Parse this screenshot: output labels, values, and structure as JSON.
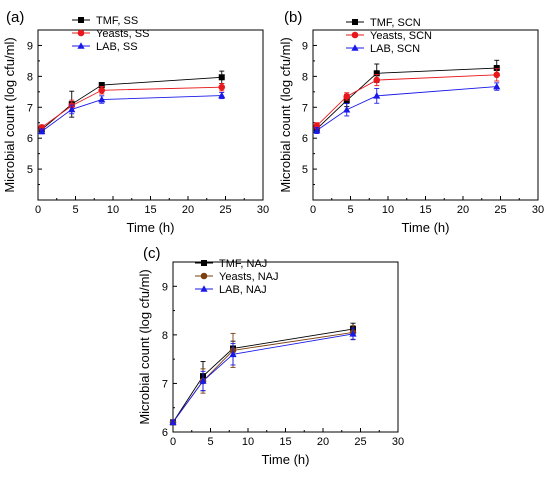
{
  "chart_data": [
    {
      "panel": "(a)",
      "type": "line",
      "xlabel": "Time (h)",
      "ylabel": "Microbial count (log cfu/ml)",
      "xlim": [
        0,
        30
      ],
      "ylim": [
        4,
        9.5
      ],
      "xticks": [
        "0",
        "5",
        "10",
        "15",
        "20",
        "25",
        "30"
      ],
      "yticks": [
        "5",
        "6",
        "7",
        "8",
        "9"
      ],
      "grid": false,
      "legend_position": "top-left",
      "series": [
        {
          "name": "TMF, SS",
          "color": "#000000",
          "marker": "square",
          "x": [
            0.5,
            4.5,
            8.5,
            24.5
          ],
          "y": [
            6.28,
            7.1,
            7.72,
            7.97
          ],
          "err": [
            0.08,
            0.42,
            0.08,
            0.2
          ]
        },
        {
          "name": "Yeasts, SS",
          "color": "#e8171b",
          "marker": "circle",
          "x": [
            0.5,
            4.5,
            8.5,
            24.5
          ],
          "y": [
            6.35,
            7.05,
            7.55,
            7.65
          ],
          "err": [
            0.08,
            0.18,
            0.12,
            0.12
          ]
        },
        {
          "name": "LAB, SS",
          "color": "#1a1ae8",
          "marker": "triangle",
          "x": [
            0.5,
            4.5,
            8.5,
            24.5
          ],
          "y": [
            6.22,
            6.93,
            7.25,
            7.38
          ],
          "err": [
            0.08,
            0.14,
            0.12,
            0.1
          ]
        }
      ]
    },
    {
      "panel": "(b)",
      "type": "line",
      "xlabel": "Time (h)",
      "ylabel": "Microbial count (log cfu/ml)",
      "xlim": [
        0,
        30
      ],
      "ylim": [
        4,
        9.5
      ],
      "xticks": [
        "0",
        "5",
        "10",
        "15",
        "20",
        "25",
        "30"
      ],
      "yticks": [
        "5",
        "6",
        "7",
        "8",
        "9"
      ],
      "grid": false,
      "legend_position": "top-left",
      "series": [
        {
          "name": "TMF, SCN",
          "color": "#000000",
          "marker": "square",
          "x": [
            0.5,
            4.5,
            8.5,
            24.5
          ],
          "y": [
            6.3,
            7.22,
            8.1,
            8.27
          ],
          "err": [
            0.1,
            0.2,
            0.3,
            0.25
          ]
        },
        {
          "name": "Yeasts, SCN",
          "color": "#e8171b",
          "marker": "circle",
          "x": [
            0.5,
            4.5,
            8.5,
            24.5
          ],
          "y": [
            6.4,
            7.35,
            7.88,
            8.05
          ],
          "err": [
            0.1,
            0.12,
            0.18,
            0.2
          ]
        },
        {
          "name": "LAB, SCN",
          "color": "#1a1ae8",
          "marker": "triangle",
          "x": [
            0.5,
            4.5,
            8.5,
            24.5
          ],
          "y": [
            6.25,
            6.92,
            7.37,
            7.67
          ],
          "err": [
            0.1,
            0.2,
            0.24,
            0.12
          ]
        }
      ]
    },
    {
      "panel": "(c)",
      "type": "line",
      "xlabel": "Time (h)",
      "ylabel": "Microbial count (log cfu/ml)",
      "xlim": [
        0,
        30
      ],
      "ylim": [
        6,
        9.5
      ],
      "xticks": [
        "0",
        "5",
        "10",
        "15",
        "20",
        "25",
        "30"
      ],
      "yticks": [
        "6",
        "7",
        "8",
        "9"
      ],
      "grid": false,
      "legend_position": "top-left",
      "series": [
        {
          "name": "TMF, NAJ",
          "color": "#000000",
          "marker": "square",
          "x": [
            0,
            4,
            8,
            24
          ],
          "y": [
            6.2,
            7.15,
            7.72,
            8.12
          ],
          "err": [
            0.04,
            0.3,
            0.15,
            0.12
          ]
        },
        {
          "name": "Yeasts, NAJ",
          "color": "#7b3f10",
          "marker": "circle",
          "x": [
            0,
            4,
            8,
            24
          ],
          "y": [
            6.2,
            7.05,
            7.68,
            8.05
          ],
          "err": [
            0.04,
            0.25,
            0.35,
            0.14
          ]
        },
        {
          "name": "LAB, NAJ",
          "color": "#1a1ae8",
          "marker": "triangle",
          "x": [
            0,
            4,
            8,
            24
          ],
          "y": [
            6.2,
            7.05,
            7.6,
            8.02
          ],
          "err": [
            0.04,
            0.2,
            0.22,
            0.12
          ]
        }
      ]
    }
  ]
}
